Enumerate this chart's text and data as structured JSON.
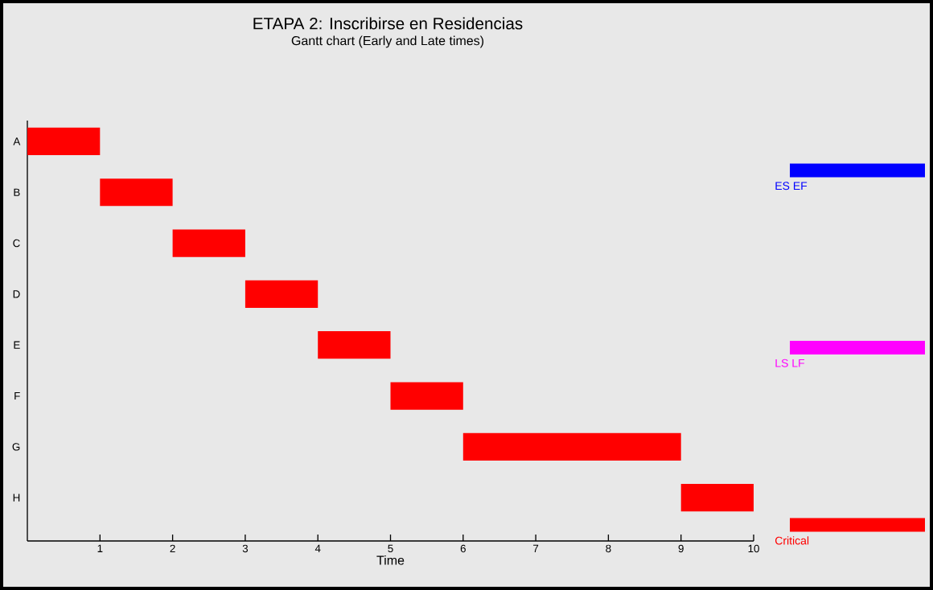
{
  "chart_data": {
    "type": "bar",
    "orientation": "horizontal",
    "title": "ETAPA 2: Inscribirse en Residencias",
    "subtitle": "Gantt chart (Early and Late times)",
    "xlabel": "Time",
    "categories": [
      "A",
      "B",
      "C",
      "D",
      "E",
      "F",
      "G",
      "H"
    ],
    "series": [
      {
        "name": "ES EF",
        "color": "#0000ff",
        "values": [
          null,
          null,
          null,
          null,
          null,
          null,
          null,
          null
        ]
      },
      {
        "name": "LS LF",
        "color": "#ff00ff",
        "values": [
          null,
          null,
          null,
          null,
          null,
          null,
          null,
          null
        ]
      },
      {
        "name": "Critical",
        "color": "#ff0000",
        "values": [
          1,
          1,
          1,
          1,
          1,
          1,
          3,
          1
        ],
        "base": [
          0,
          1,
          2,
          3,
          4,
          5,
          6,
          9
        ]
      }
    ],
    "xlim": [
      0,
      10
    ],
    "xticks": [
      1,
      2,
      3,
      4,
      5,
      6,
      7,
      8,
      9,
      10
    ],
    "legend": "right"
  }
}
